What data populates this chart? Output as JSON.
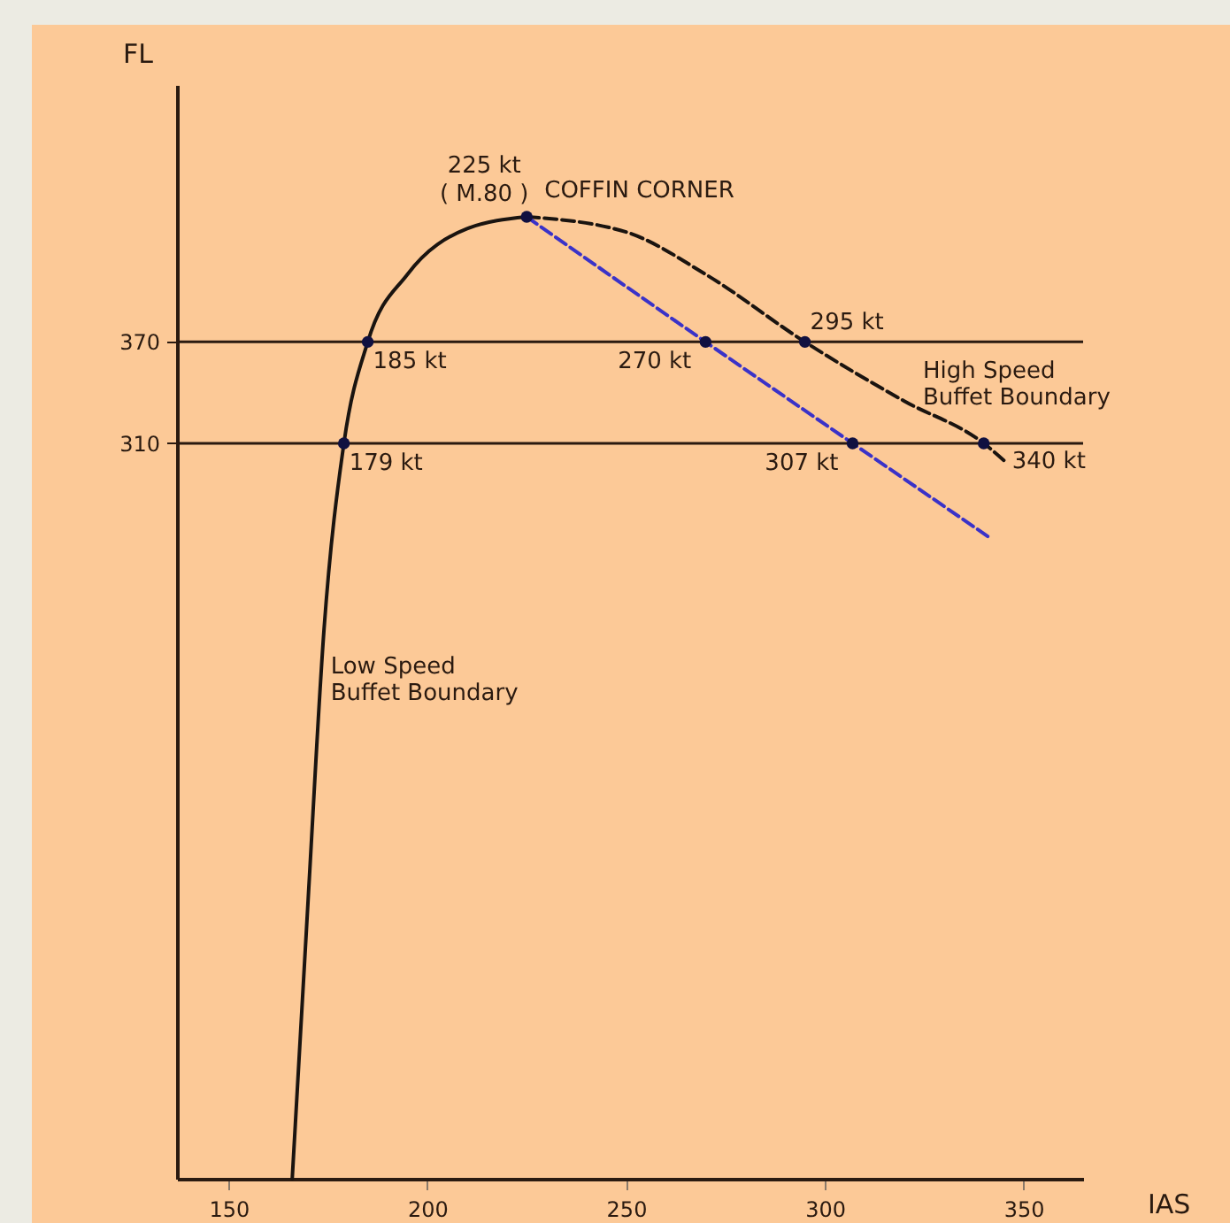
{
  "chart_data": {
    "type": "line",
    "xlabel": "IAS",
    "ylabel": "FL",
    "xlim": [
      137,
      365
    ],
    "xticks": [
      150,
      200,
      250,
      300,
      350
    ],
    "ylim": [
      -125,
      522
    ],
    "yticks": [
      310,
      370
    ],
    "ref_lines": [
      {
        "axis": "y",
        "value": 310,
        "color": "#2a1a10"
      },
      {
        "axis": "y",
        "value": 370,
        "color": "#2a1a10"
      }
    ],
    "series": [
      {
        "color": "#1a1410",
        "line_style": "solid",
        "x": [
          166,
          170,
          174,
          179,
          185,
          195,
          210,
          225
        ],
        "values": [
          -125,
          40,
          200,
          310,
          370,
          410,
          437,
          444
        ]
      },
      {
        "color": "#1a1410",
        "line_style": "dashed",
        "x": [
          225,
          250,
          270,
          295,
          320,
          340,
          346
        ],
        "values": [
          444,
          435,
          410,
          370,
          335,
          310,
          298
        ]
      },
      {
        "color": "#3a32c8",
        "line_style": "dashed",
        "x": [
          225,
          270,
          307,
          341
        ],
        "values": [
          444,
          370,
          310,
          255
        ]
      },
      {
        "type": "scatter",
        "color": "#101040",
        "x": [
          179,
          185,
          225,
          270,
          307,
          295,
          340
        ],
        "values": [
          310,
          370,
          444,
          370,
          310,
          370,
          310
        ]
      }
    ],
    "annotations": [
      {
        "text": "179 kt",
        "x": 179,
        "y": 310
      },
      {
        "text": "185 kt",
        "x": 185,
        "y": 370
      },
      {
        "text": "225 kt",
        "x": 225,
        "y": 444
      },
      {
        "text": "270 kt",
        "x": 270,
        "y": 370
      },
      {
        "text": "307 kt",
        "x": 307,
        "y": 310
      },
      {
        "text": "295 kt",
        "x": 295,
        "y": 370
      },
      {
        "text": "340 kt",
        "x": 340,
        "y": 310
      },
      {
        "text": "( M.80 )",
        "x": 225,
        "y": 444
      },
      {
        "text": "COFFIN CORNER",
        "x": 225,
        "y": 444
      },
      {
        "text": "High Speed\nBuffet Boundary",
        "x": 322,
        "y": 332
      },
      {
        "text": "Low Speed\nBuffet Boundary",
        "x": 173,
        "y": 180
      }
    ]
  }
}
